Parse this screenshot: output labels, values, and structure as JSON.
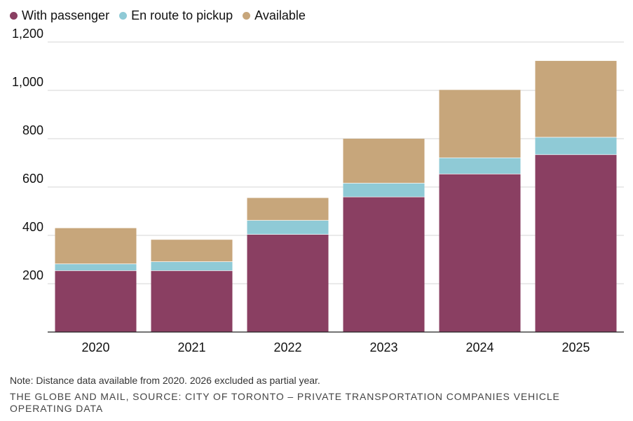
{
  "chart_data": {
    "type": "bar",
    "stacked": true,
    "categories": [
      "2020",
      "2021",
      "2022",
      "2023",
      "2024",
      "2025"
    ],
    "series": [
      {
        "name": "With passenger",
        "color": "#8a3f62",
        "values": [
          255,
          255,
          405,
          560,
          655,
          735
        ]
      },
      {
        "name": "En route to pickup",
        "color": "#8fcad6",
        "values": [
          28,
          37,
          58,
          57,
          67,
          72
        ]
      },
      {
        "name": "Available",
        "color": "#c7a67b",
        "values": [
          147,
          90,
          92,
          183,
          280,
          315
        ]
      }
    ],
    "yticks": [
      "200",
      "400",
      "600",
      "800",
      "1,000",
      "1,200"
    ],
    "ylim": [
      0,
      1200
    ],
    "grid": true,
    "legend_position": "top-left"
  },
  "footer": {
    "note": "Note: Distance data available from 2020. 2026 excluded as partial year.",
    "source": "THE GLOBE AND MAIL, SOURCE: CITY OF TORONTO – PRIVATE TRANSPORTATION COMPANIES VEHICLE OPERATING DATA"
  }
}
